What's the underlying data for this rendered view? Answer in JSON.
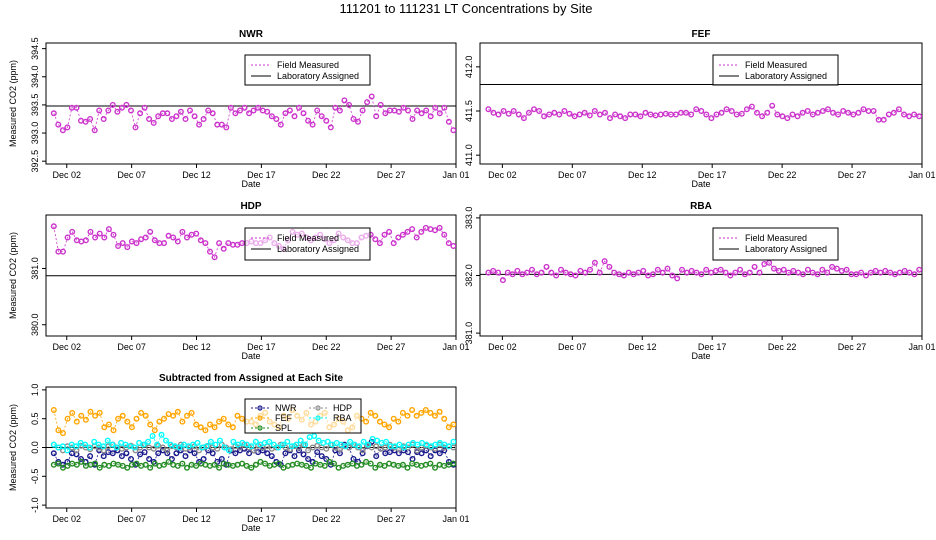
{
  "page_title": "111201  to  111231 LT Concentrations by Site",
  "chart_data": [
    {
      "type": "scatter",
      "title": "NWR",
      "xlabel": "Date",
      "ylabel": "Measured CO2 (ppm)",
      "xticks": [
        "Dec 02",
        "Dec 07",
        "Dec 12",
        "Dec 17",
        "Dec 22",
        "Dec 27",
        "Jan 01"
      ],
      "xlim": [
        0.4,
        32.0
      ],
      "yticks": [
        392.5,
        393.0,
        393.5,
        394.0,
        394.5
      ],
      "ytick_labels": [
        "392.5",
        "393.0",
        "393.5",
        "394.0",
        "394.5"
      ],
      "ylim": [
        392.45,
        394.6
      ],
      "assigned": 393.48,
      "legend": {
        "position": "top-right",
        "entries": [
          "Field Measured",
          "Laboratory Assigned"
        ]
      },
      "series": [
        {
          "name": "Field Measured",
          "color": "#cc33cc",
          "values": [
            393.35,
            393.15,
            393.05,
            393.1,
            393.45,
            393.45,
            393.22,
            393.2,
            393.25,
            393.05,
            393.4,
            393.25,
            393.4,
            393.5,
            393.38,
            393.45,
            393.5,
            393.4,
            393.1,
            393.35,
            393.45,
            393.25,
            393.18,
            393.3,
            393.35,
            393.35,
            393.25,
            393.3,
            393.38,
            393.25,
            393.4,
            393.3,
            393.15,
            393.25,
            393.4,
            393.35,
            393.15,
            393.15,
            393.1,
            393.45,
            393.35,
            393.4,
            393.45,
            393.35,
            393.4,
            393.45,
            393.4,
            393.38,
            393.3,
            393.25,
            393.15,
            393.35,
            393.4,
            393.3,
            393.45,
            393.35,
            393.22,
            393.15,
            393.4,
            393.3,
            393.22,
            393.1,
            393.45,
            393.4,
            393.58,
            393.5,
            393.25,
            393.2,
            393.4,
            393.55,
            393.65,
            393.3,
            393.5,
            393.35,
            393.4,
            393.4,
            393.38,
            393.45,
            393.4,
            393.25,
            393.4,
            393.35,
            393.4,
            393.3,
            393.45,
            393.35,
            393.45,
            393.2,
            393.05
          ]
        }
      ]
    },
    {
      "type": "scatter",
      "title": "FEF",
      "xlabel": "Date",
      "ylabel": "",
      "xticks": [
        "Dec 02",
        "Dec 07",
        "Dec 12",
        "Dec 17",
        "Dec 22",
        "Dec 27",
        "Jan 01"
      ],
      "xlim": [
        0.4,
        32.0
      ],
      "yticks": [
        411.0,
        411.5,
        412.0
      ],
      "ytick_labels": [
        "411.0",
        "411.5",
        "412.0"
      ],
      "ylim": [
        410.9,
        412.27
      ],
      "assigned": 411.8,
      "legend": {
        "position": "top-right",
        "entries": [
          "Field Measured",
          "Laboratory Assigned"
        ]
      },
      "series": [
        {
          "name": "Field Measured",
          "color": "#cc33cc",
          "values": [
            411.52,
            411.48,
            411.46,
            411.5,
            411.47,
            411.5,
            411.46,
            411.42,
            411.48,
            411.52,
            411.5,
            411.44,
            411.46,
            411.48,
            411.46,
            411.5,
            411.47,
            411.44,
            411.46,
            411.48,
            411.45,
            411.5,
            411.46,
            411.48,
            411.42,
            411.46,
            411.44,
            411.42,
            411.46,
            411.46,
            411.44,
            411.48,
            411.46,
            411.45,
            411.46,
            411.47,
            411.46,
            411.46,
            411.48,
            411.48,
            411.46,
            411.52,
            411.5,
            411.46,
            411.42,
            411.46,
            411.48,
            411.52,
            411.5,
            411.46,
            411.47,
            411.52,
            411.55,
            411.48,
            411.44,
            411.48,
            411.56,
            411.46,
            411.44,
            411.42,
            411.46,
            411.44,
            411.48,
            411.5,
            411.46,
            411.48,
            411.5,
            411.52,
            411.48,
            411.46,
            411.5,
            411.48,
            411.46,
            411.48,
            411.52,
            411.5,
            411.5,
            411.4,
            411.4,
            411.46,
            411.48,
            411.52,
            411.46,
            411.44,
            411.46,
            411.44
          ]
        }
      ]
    },
    {
      "type": "scatter",
      "title": "HDP",
      "xlabel": "Date",
      "ylabel": "Measured CO2 (ppm)",
      "xticks": [
        "Dec 02",
        "Dec 07",
        "Dec 12",
        "Dec 17",
        "Dec 22",
        "Dec 27",
        "Jan 01"
      ],
      "xlim": [
        0.4,
        32.0
      ],
      "yticks": [
        380.0,
        381.0
      ],
      "ytick_labels": [
        "380.0",
        "381.0"
      ],
      "ylim": [
        379.8,
        381.95
      ],
      "assigned": 380.87,
      "legend": {
        "position": "top-right",
        "entries": [
          "Field Measured",
          "Laboratory Assigned"
        ]
      },
      "series": [
        {
          "name": "Field Measured",
          "color": "#cc33cc",
          "values": [
            381.75,
            381.3,
            381.3,
            381.55,
            381.65,
            381.5,
            381.48,
            381.5,
            381.65,
            381.55,
            381.62,
            381.55,
            381.7,
            381.6,
            381.4,
            381.45,
            381.38,
            381.48,
            381.45,
            381.52,
            381.55,
            381.65,
            381.5,
            381.45,
            381.45,
            381.58,
            381.55,
            381.48,
            381.65,
            381.55,
            381.6,
            381.62,
            381.5,
            381.45,
            381.3,
            381.2,
            381.45,
            381.35,
            381.45,
            381.42,
            381.42,
            381.45,
            381.45,
            381.48,
            381.45,
            381.45,
            381.5,
            381.55,
            381.45,
            381.4,
            381.35,
            381.5,
            381.65,
            381.6,
            381.62,
            381.55,
            381.5,
            381.55,
            381.6,
            381.52,
            381.45,
            381.5,
            381.62,
            381.55,
            381.5,
            381.45,
            381.45,
            381.55,
            381.58,
            381.6,
            381.52,
            381.45,
            381.6,
            381.65,
            381.45,
            381.55,
            381.6,
            381.65,
            381.7,
            381.55,
            381.65,
            381.72,
            381.7,
            381.68,
            381.72,
            381.6,
            381.45,
            381.4
          ]
        }
      ]
    },
    {
      "type": "scatter",
      "title": "RBA",
      "xlabel": "Date",
      "ylabel": "",
      "xticks": [
        "Dec 02",
        "Dec 07",
        "Dec 12",
        "Dec 17",
        "Dec 22",
        "Dec 27",
        "Jan 01"
      ],
      "xlim": [
        0.4,
        32.0
      ],
      "yticks": [
        381.0,
        382.0,
        383.0
      ],
      "ytick_labels": [
        "381.0",
        "382.0",
        "383.0"
      ],
      "ylim": [
        380.95,
        383.05
      ],
      "assigned": 382.02,
      "legend": {
        "position": "top-right",
        "entries": [
          "Field Measured",
          "Laboratory Assigned"
        ]
      },
      "series": [
        {
          "name": "Field Measured",
          "color": "#cc33cc",
          "values": [
            382.05,
            382.08,
            382.05,
            381.92,
            382.05,
            382.02,
            382.08,
            382.02,
            382.05,
            382.1,
            382.02,
            382.05,
            382.15,
            382.05,
            382.0,
            382.1,
            382.05,
            382.02,
            382.0,
            382.08,
            382.05,
            382.1,
            382.22,
            382.05,
            382.25,
            382.15,
            382.05,
            382.02,
            382.0,
            382.05,
            382.02,
            382.05,
            382.08,
            382.0,
            382.02,
            382.1,
            382.05,
            382.12,
            382.0,
            381.95,
            382.1,
            382.05,
            382.08,
            382.05,
            382.02,
            382.1,
            382.05,
            382.08,
            382.1,
            382.05,
            382.0,
            382.05,
            382.1,
            382.02,
            382.05,
            382.15,
            382.05,
            382.2,
            382.22,
            382.12,
            382.08,
            382.1,
            382.05,
            382.08,
            382.05,
            382.02,
            382.1,
            382.05,
            382.02,
            382.1,
            382.05,
            382.15,
            382.12,
            382.08,
            382.1,
            382.02,
            382.02,
            382.05,
            382.0,
            382.05,
            382.08,
            382.05,
            382.08,
            382.05,
            382.02,
            382.05,
            382.08,
            382.05,
            382.02,
            382.1
          ]
        }
      ]
    },
    {
      "type": "line",
      "title": "Subtracted from Assigned at Each Site",
      "xlabel": "Date",
      "ylabel": "Measured CO2 (ppm)",
      "xticks": [
        "Dec 02",
        "Dec 07",
        "Dec 12",
        "Dec 17",
        "Dec 22",
        "Dec 27",
        "Jan 01"
      ],
      "xlim": [
        0.4,
        32.0
      ],
      "yticks": [
        -1.0,
        -0.5,
        0.0,
        0.5,
        1.0
      ],
      "ytick_labels": [
        "-1.0",
        "-0.5",
        "0.0",
        "0.5",
        "1.0"
      ],
      "ylim": [
        -1.05,
        1.05
      ],
      "assigned": 0.0,
      "legend": {
        "position": "top-right",
        "entries": [
          "NWR",
          "HDP",
          "FEF",
          "RBA",
          "SPL"
        ]
      },
      "series": [
        {
          "name": "NWR",
          "color": "#1a1a8c",
          "values": [
            -0.1,
            -0.25,
            -0.3,
            -0.25,
            -0.1,
            -0.12,
            -0.2,
            -0.25,
            -0.15,
            -0.3,
            -0.05,
            -0.15,
            -0.08,
            -0.1,
            -0.05,
            -0.15,
            -0.1,
            -0.2,
            -0.3,
            -0.12,
            -0.08,
            -0.2,
            -0.25,
            -0.1,
            -0.05,
            -0.1,
            -0.2,
            -0.1,
            -0.05,
            -0.15,
            -0.05,
            -0.1,
            -0.25,
            -0.2,
            -0.05,
            -0.1,
            -0.25,
            -0.2,
            -0.3,
            -0.05,
            -0.1,
            -0.05,
            -0.02,
            -0.1,
            -0.05,
            -0.08,
            -0.05,
            -0.1,
            -0.15,
            -0.25,
            -0.3,
            -0.1,
            -0.05,
            -0.15,
            -0.05,
            -0.12,
            -0.2,
            -0.25,
            -0.08,
            -0.15,
            -0.2,
            -0.3,
            -0.05,
            -0.1,
            0.05,
            0.0,
            -0.2,
            -0.25,
            -0.1,
            0.02,
            0.1,
            -0.15,
            -0.02,
            -0.1,
            -0.08,
            -0.05,
            -0.1,
            -0.05,
            -0.08,
            -0.2,
            -0.08,
            -0.1,
            -0.05,
            -0.15,
            -0.05,
            -0.1,
            -0.05,
            -0.25,
            -0.3
          ]
        },
        {
          "name": "HDP",
          "color": "#8c8c8c",
          "values": [
            0.05,
            0.0,
            -0.05,
            0.02,
            0.0,
            -0.05,
            0.03,
            0.0,
            -0.03,
            0.02,
            0.0,
            -0.05,
            0.02,
            0.05,
            0.0,
            -0.02,
            0.0,
            0.03,
            -0.05,
            0.0,
            0.05,
            0.0,
            -0.02,
            0.03,
            0.0,
            -0.05,
            0.02,
            0.0,
            0.05,
            -0.02,
            0.0,
            0.02,
            -0.05,
            0.0,
            0.03,
            0.0,
            -0.02,
            0.05,
            0.0,
            -0.03,
            0.02,
            0.0,
            0.05,
            0.0,
            -0.05,
            0.03,
            0.0,
            0.02,
            -0.02,
            0.0,
            0.05,
            0.0,
            -0.03,
            0.02,
            0.0,
            0.05,
            -0.05,
            0.0,
            0.03,
            0.0,
            -0.02,
            0.05,
            0.0,
            -0.03,
            0.02,
            0.0,
            0.05,
            0.0,
            -0.05,
            0.03,
            0.0,
            0.02,
            -0.02,
            0.0,
            0.05,
            0.0,
            -0.03,
            0.02,
            0.0,
            0.05,
            -0.05,
            0.0,
            0.03,
            0.0,
            -0.02,
            0.05,
            0.0,
            0.02,
            0.0
          ]
        },
        {
          "name": "FEF",
          "color": "#ffa500",
          "values": [
            0.65,
            0.3,
            0.25,
            0.5,
            0.6,
            0.45,
            0.55,
            0.48,
            0.62,
            0.55,
            0.6,
            0.35,
            0.4,
            0.3,
            0.5,
            0.55,
            0.45,
            0.35,
            0.5,
            0.6,
            0.55,
            0.4,
            0.3,
            0.45,
            0.5,
            0.58,
            0.55,
            0.62,
            0.45,
            0.55,
            0.6,
            0.4,
            0.35,
            0.3,
            0.4,
            0.35,
            0.45,
            0.5,
            0.4,
            0.35,
            0.55,
            0.5,
            0.45,
            0.45,
            0.4,
            0.55,
            0.6,
            0.45,
            0.4,
            0.35,
            0.55,
            0.5,
            0.65,
            0.55,
            0.48,
            0.6,
            0.4,
            0.45,
            0.55,
            0.6,
            0.35,
            0.4,
            0.5,
            0.45,
            0.3,
            0.35,
            0.55,
            0.5,
            0.45,
            0.6,
            0.55,
            0.45,
            0.4,
            0.35,
            0.5,
            0.45,
            0.6,
            0.55,
            0.65,
            0.55,
            0.6,
            0.65,
            0.6,
            0.55,
            0.62,
            0.5,
            0.35,
            0.4
          ]
        },
        {
          "name": "RBA",
          "color": "#00ffff",
          "values": [
            0.05,
            0.0,
            0.02,
            -0.05,
            0.05,
            0.02,
            0.08,
            0.05,
            0.0,
            0.1,
            0.05,
            0.02,
            0.12,
            0.05,
            0.0,
            0.08,
            0.05,
            0.02,
            0.0,
            0.08,
            0.05,
            0.1,
            0.2,
            0.05,
            0.22,
            0.12,
            0.05,
            0.02,
            0.0,
            0.05,
            0.02,
            0.05,
            0.08,
            0.0,
            0.02,
            0.1,
            0.05,
            0.12,
            0.0,
            -0.05,
            0.1,
            0.05,
            0.08,
            0.05,
            0.02,
            0.1,
            0.05,
            0.08,
            0.1,
            0.05,
            0.0,
            0.05,
            0.1,
            0.02,
            0.05,
            0.12,
            0.05,
            0.18,
            0.2,
            0.12,
            0.08,
            0.1,
            0.05,
            0.08,
            0.05,
            0.02,
            0.1,
            0.05,
            0.02,
            0.1,
            0.05,
            0.15,
            0.12,
            0.08,
            0.1,
            0.02,
            0.02,
            0.05,
            0.0,
            0.05,
            0.08,
            0.05,
            0.08,
            0.05,
            0.02,
            0.05,
            0.08,
            0.05,
            0.02,
            0.1
          ]
        },
        {
          "name": "SPL",
          "color": "#228b22",
          "values": [
            -0.3,
            -0.28,
            -0.35,
            -0.32,
            -0.28,
            -0.3,
            -0.25,
            -0.32,
            -0.3,
            -0.28,
            -0.35,
            -0.3,
            -0.32,
            -0.28,
            -0.3,
            -0.32,
            -0.35,
            -0.3,
            -0.28,
            -0.32,
            -0.3,
            -0.35,
            -0.28,
            -0.32,
            -0.3,
            -0.25,
            -0.3,
            -0.32,
            -0.28,
            -0.35,
            -0.3,
            -0.32,
            -0.28,
            -0.3,
            -0.32,
            -0.3,
            -0.35,
            -0.28,
            -0.3,
            -0.32,
            -0.3,
            -0.28,
            -0.32,
            -0.35,
            -0.3,
            -0.25,
            -0.28,
            -0.32,
            -0.3,
            -0.28,
            -0.35,
            -0.32,
            -0.3,
            -0.28,
            -0.3,
            -0.32,
            -0.35,
            -0.28,
            -0.3,
            -0.32,
            -0.25,
            -0.28,
            -0.35,
            -0.32,
            -0.3,
            -0.28,
            -0.32,
            -0.3,
            -0.25,
            -0.28,
            -0.35,
            -0.3,
            -0.32,
            -0.28,
            -0.3,
            -0.32,
            -0.3,
            -0.35,
            -0.28,
            -0.3,
            -0.32,
            -0.3,
            -0.28,
            -0.35,
            -0.3,
            -0.32,
            -0.3,
            -0.28
          ]
        }
      ]
    }
  ]
}
